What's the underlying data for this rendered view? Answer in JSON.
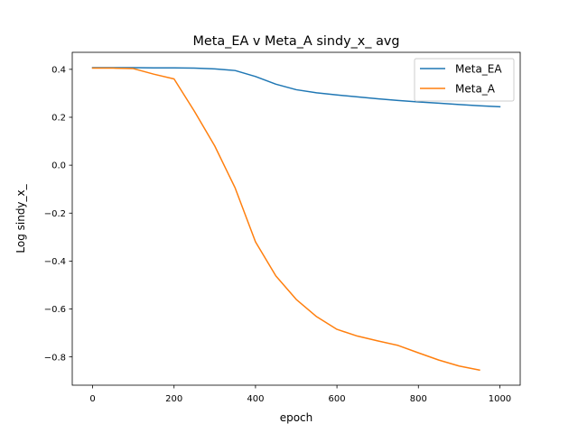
{
  "chart_data": {
    "type": "line",
    "title": "Meta_EA v Meta_A sindy_x_ avg",
    "xlabel": "epoch",
    "ylabel": "Log sindy_x_",
    "xlim": [
      -50,
      1050
    ],
    "ylim": [
      -0.918,
      0.471
    ],
    "xticks": [
      0,
      200,
      400,
      600,
      800,
      1000
    ],
    "xtick_labels": [
      "0",
      "200",
      "400",
      "600",
      "800",
      "1000"
    ],
    "yticks": [
      0.4,
      0.2,
      0.0,
      -0.2,
      -0.4,
      -0.6,
      -0.8
    ],
    "ytick_labels": [
      "0.4",
      "0.2",
      "0.0",
      "−0.2",
      "−0.4",
      "−0.6",
      "−0.8"
    ],
    "grid": false,
    "legend_position": "top-right",
    "series": [
      {
        "name": "Meta_EA",
        "color": "#1f77b4",
        "x": [
          0,
          50,
          100,
          150,
          200,
          250,
          300,
          350,
          400,
          450,
          500,
          550,
          600,
          650,
          700,
          750,
          800,
          850,
          900,
          950,
          1000
        ],
        "y": [
          0.407,
          0.407,
          0.407,
          0.406,
          0.406,
          0.405,
          0.402,
          0.395,
          0.37,
          0.338,
          0.315,
          0.302,
          0.293,
          0.285,
          0.277,
          0.27,
          0.264,
          0.259,
          0.253,
          0.248,
          0.244
        ]
      },
      {
        "name": "Meta_A",
        "color": "#ff7f0e",
        "x": [
          0,
          50,
          100,
          150,
          200,
          250,
          300,
          350,
          400,
          450,
          500,
          550,
          600,
          650,
          700,
          750,
          800,
          850,
          900,
          950
        ],
        "y": [
          0.405,
          0.405,
          0.403,
          0.38,
          0.36,
          0.225,
          0.08,
          -0.095,
          -0.32,
          -0.462,
          -0.56,
          -0.632,
          -0.685,
          -0.713,
          -0.733,
          -0.752,
          -0.783,
          -0.813,
          -0.838,
          -0.855
        ]
      }
    ]
  }
}
